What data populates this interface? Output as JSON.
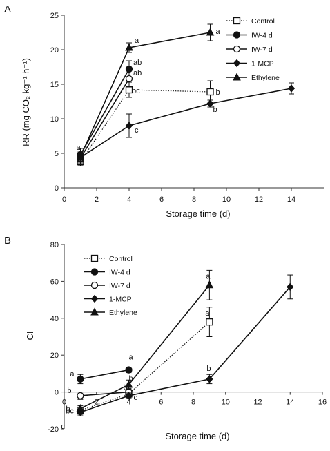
{
  "chart_data": [
    {
      "panel_label": "A",
      "type": "line",
      "xlabel": "Storage time (d)",
      "ylabel": "RR (mg CO₂ kg⁻¹ h⁻¹)",
      "xlim": [
        0,
        16
      ],
      "ylim": [
        0,
        25
      ],
      "x_ticks": [
        0,
        2,
        4,
        6,
        8,
        10,
        12,
        14
      ],
      "y_ticks": [
        0,
        5,
        10,
        15,
        20,
        25
      ],
      "grid": false,
      "legend_position": "top-right",
      "series": [
        {
          "name": "Control",
          "marker": "open-square",
          "line": "dotted",
          "x": [
            1,
            4,
            9
          ],
          "y": [
            3.8,
            14.2,
            13.9
          ],
          "err": [
            0.6,
            1.1,
            1.6
          ],
          "labels": [
            "",
            "bc",
            "b"
          ]
        },
        {
          "name": "IW-4 d",
          "marker": "filled-circle",
          "line": "solid",
          "x": [
            1,
            4
          ],
          "y": [
            4.8,
            17.2
          ],
          "err": [
            0.9,
            1.2
          ],
          "labels": [
            "a",
            "ab"
          ]
        },
        {
          "name": "IW-7 d",
          "marker": "open-circle",
          "line": "solid",
          "x": [
            1,
            4
          ],
          "y": [
            4.3,
            15.8
          ],
          "err": [
            0.8,
            1.2
          ],
          "labels": [
            "",
            "ab"
          ]
        },
        {
          "name": "1-MCP",
          "marker": "filled-diamond",
          "line": "solid",
          "x": [
            1,
            4,
            9,
            14
          ],
          "y": [
            4.4,
            9.0,
            12.2,
            14.4
          ],
          "err": [
            0.7,
            1.7,
            0.5,
            0.8
          ],
          "labels": [
            "",
            "c",
            "b",
            ""
          ]
        },
        {
          "name": "Ethylene",
          "marker": "filled-triangle",
          "line": "solid",
          "x": [
            1,
            4,
            9
          ],
          "y": [
            4.5,
            20.3,
            22.5
          ],
          "err": [
            0.7,
            0.7,
            1.2
          ],
          "labels": [
            "",
            "a",
            "a"
          ]
        }
      ]
    },
    {
      "panel_label": "B",
      "type": "line",
      "xlabel": "Storage time (d)",
      "ylabel": "CI",
      "xlim": [
        0,
        16
      ],
      "ylim": [
        -20,
        80
      ],
      "x_ticks": [
        0,
        2,
        4,
        6,
        8,
        10,
        12,
        14,
        16
      ],
      "y_ticks": [
        -20,
        0,
        20,
        40,
        60,
        80
      ],
      "grid": false,
      "legend_position": "top-left",
      "series": [
        {
          "name": "Control",
          "marker": "open-square",
          "line": "dotted",
          "x": [
            1,
            4,
            9
          ],
          "y": [
            -10,
            -1,
            38
          ],
          "err": [
            1.5,
            2.0,
            8.0
          ],
          "labels": [
            "b",
            "bc",
            "a"
          ]
        },
        {
          "name": "IW-4 d",
          "marker": "filled-circle",
          "line": "solid",
          "x": [
            1,
            4
          ],
          "y": [
            7,
            12
          ],
          "err": [
            2.5,
            1.5
          ],
          "labels": [
            "a",
            "a"
          ]
        },
        {
          "name": "IW-7 d",
          "marker": "open-circle",
          "line": "solid",
          "x": [
            1,
            4
          ],
          "y": [
            -2,
            0
          ],
          "err": [
            2.0,
            2.0
          ],
          "labels": [
            "b",
            "b"
          ]
        },
        {
          "name": "1-MCP",
          "marker": "filled-diamond",
          "line": "solid",
          "x": [
            1,
            4,
            9,
            14
          ],
          "y": [
            -11,
            -2,
            7,
            57
          ],
          "err": [
            1.5,
            1.5,
            2.5,
            6.5
          ],
          "labels": [
            "c",
            "c",
            "b",
            ""
          ]
        },
        {
          "name": "Ethylene",
          "marker": "filled-triangle",
          "line": "solid",
          "x": [
            1,
            4,
            9
          ],
          "y": [
            -9,
            4,
            58
          ],
          "err": [
            1.5,
            2.5,
            8.0
          ],
          "labels": [
            "bc",
            "",
            "a"
          ]
        }
      ]
    }
  ]
}
